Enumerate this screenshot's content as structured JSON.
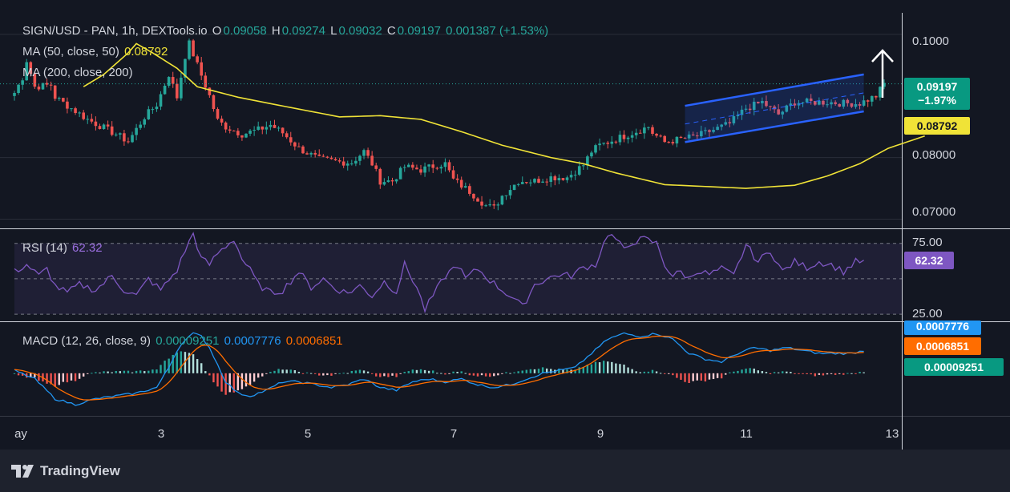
{
  "colors": {
    "background": "#131722",
    "up": "#26a69a",
    "down": "#ef5350",
    "ma50": "#f0e337",
    "rsi": "#7e57c2",
    "macd": "#2196f3",
    "signal": "#ff6d00",
    "channel": "#2962ff"
  },
  "header": {
    "symbol": "SIGN/USD - PAN, 1h, DEXTools.io",
    "o_label": "O",
    "o_value": "0.09058",
    "h_label": "H",
    "h_value": "0.09274",
    "l_label": "L",
    "l_value": "0.09032",
    "c_label": "C",
    "c_value": "0.09197",
    "change": "0.001387 (+1.53%)",
    "ma50_label": "MA (50, close, 50)",
    "ma50_value": "0.08792",
    "ma200_label": "MA (200, close, 200)"
  },
  "rsi_header": {
    "label": "RSI (14)",
    "value": "62.32"
  },
  "macd_header": {
    "label": "MACD (12, 26, close, 9)",
    "hist": "0.00009251",
    "macd": "0.0007776",
    "signal": "0.0006851"
  },
  "badges": {
    "price": "0.09197",
    "change_pct": "−1.97%",
    "ma50": "0.08792",
    "rsi": "62.32",
    "macd": "0.0007776",
    "signal": "0.0006851",
    "hist": "0.00009251"
  },
  "price_axis": [
    "0.1000",
    "0.08000",
    "0.07000"
  ],
  "rsi_axis": [
    "75.00",
    "25.00"
  ],
  "time_axis": [
    "ay",
    "3",
    "5",
    "7",
    "9",
    "11",
    "13"
  ],
  "footer": {
    "brand": "TradingView",
    "logo_icon": "tradingview-logo-icon"
  },
  "chart_data": {
    "type": "candlestick",
    "price_ylim": [
      0.0685,
      0.1035
    ],
    "rsi_ylim": [
      20,
      85
    ],
    "x_ticks": [
      "ay",
      "3",
      "5",
      "7",
      "9",
      "11",
      "13"
    ],
    "price_ticks": [
      "0.1000",
      "0.08000",
      "0.07000"
    ],
    "price_keypoints": [
      [
        0,
        0.0905
      ],
      [
        2,
        0.093
      ],
      [
        3,
        0.0958
      ],
      [
        5,
        0.0915
      ],
      [
        9,
        0.0918
      ],
      [
        10,
        0.0898
      ],
      [
        14,
        0.088
      ],
      [
        18,
        0.0862
      ],
      [
        25,
        0.0838
      ],
      [
        28,
        0.0826
      ],
      [
        32,
        0.0866
      ],
      [
        35,
        0.0886
      ],
      [
        38,
        0.0935
      ],
      [
        40,
        0.0898
      ],
      [
        42,
        0.0965
      ],
      [
        43,
        0.0985
      ],
      [
        45,
        0.095
      ],
      [
        48,
        0.09
      ],
      [
        50,
        0.086
      ],
      [
        52,
        0.085
      ],
      [
        56,
        0.0838
      ],
      [
        60,
        0.0845
      ],
      [
        63,
        0.0853
      ],
      [
        66,
        0.084
      ],
      [
        70,
        0.0815
      ],
      [
        75,
        0.0797
      ],
      [
        80,
        0.0793
      ],
      [
        83,
        0.0792
      ],
      [
        86,
        0.081
      ],
      [
        88,
        0.079
      ],
      [
        90,
        0.0762
      ],
      [
        93,
        0.0762
      ],
      [
        96,
        0.0785
      ],
      [
        100,
        0.078
      ],
      [
        104,
        0.0788
      ],
      [
        106,
        0.079
      ],
      [
        108,
        0.0764
      ],
      [
        112,
        0.0745
      ],
      [
        116,
        0.0722
      ],
      [
        118,
        0.0718
      ],
      [
        120,
        0.0738
      ],
      [
        124,
        0.0762
      ],
      [
        128,
        0.0762
      ],
      [
        132,
        0.0768
      ],
      [
        136,
        0.0768
      ],
      [
        140,
        0.0788
      ],
      [
        142,
        0.081
      ],
      [
        144,
        0.082
      ],
      [
        148,
        0.083
      ],
      [
        152,
        0.084
      ],
      [
        156,
        0.085
      ],
      [
        157,
        0.084
      ],
      [
        160,
        0.0825
      ],
      [
        164,
        0.083
      ],
      [
        168,
        0.0835
      ],
      [
        172,
        0.0845
      ],
      [
        176,
        0.0855
      ],
      [
        180,
        0.088
      ],
      [
        184,
        0.089
      ],
      [
        188,
        0.087
      ],
      [
        192,
        0.089
      ],
      [
        196,
        0.089
      ],
      [
        200,
        0.089
      ],
      [
        204,
        0.0888
      ],
      [
        208,
        0.0888
      ],
      [
        212,
        0.09
      ],
      [
        214,
        0.092
      ]
    ],
    "ma50_keypoints": [
      [
        17,
        0.0915
      ],
      [
        22,
        0.0935
      ],
      [
        28,
        0.097
      ],
      [
        30,
        0.0985
      ],
      [
        34,
        0.097
      ],
      [
        40,
        0.0945
      ],
      [
        45,
        0.0915
      ],
      [
        55,
        0.0898
      ],
      [
        65,
        0.0885
      ],
      [
        80,
        0.0866
      ],
      [
        90,
        0.0868
      ],
      [
        100,
        0.0862
      ],
      [
        110,
        0.0842
      ],
      [
        120,
        0.082
      ],
      [
        132,
        0.08
      ],
      [
        140,
        0.079
      ],
      [
        148,
        0.0775
      ],
      [
        160,
        0.0756
      ],
      [
        180,
        0.075
      ],
      [
        192,
        0.0755
      ],
      [
        200,
        0.077
      ],
      [
        208,
        0.079
      ],
      [
        215,
        0.0815
      ],
      [
        224,
        0.0835
      ]
    ],
    "channel": {
      "upper": [
        [
          165,
          0.0884
        ],
        [
          209,
          0.0935
        ]
      ],
      "lower": [
        [
          165,
          0.0825
        ],
        [
          209,
          0.0875
        ]
      ]
    },
    "rsi_keypoints": [
      [
        0,
        55
      ],
      [
        3,
        60
      ],
      [
        6,
        52
      ],
      [
        8,
        57
      ],
      [
        10,
        45
      ],
      [
        13,
        40
      ],
      [
        16,
        46
      ],
      [
        20,
        42
      ],
      [
        24,
        52
      ],
      [
        27,
        42
      ],
      [
        30,
        38
      ],
      [
        33,
        50
      ],
      [
        36,
        42
      ],
      [
        40,
        56
      ],
      [
        42,
        70
      ],
      [
        44,
        82
      ],
      [
        46,
        64
      ],
      [
        48,
        60
      ],
      [
        50,
        68
      ],
      [
        54,
        78
      ],
      [
        56,
        64
      ],
      [
        58,
        56
      ],
      [
        60,
        46
      ],
      [
        63,
        40
      ],
      [
        66,
        42
      ],
      [
        70,
        55
      ],
      [
        73,
        44
      ],
      [
        76,
        50
      ],
      [
        79,
        43
      ],
      [
        82,
        40
      ],
      [
        85,
        45
      ],
      [
        88,
        38
      ],
      [
        91,
        48
      ],
      [
        94,
        41
      ],
      [
        96,
        60
      ],
      [
        99,
        44
      ],
      [
        101,
        28
      ],
      [
        103,
        38
      ],
      [
        106,
        52
      ],
      [
        109,
        60
      ],
      [
        111,
        50
      ],
      [
        114,
        57
      ],
      [
        117,
        49
      ],
      [
        120,
        42
      ],
      [
        123,
        36
      ],
      [
        125,
        30
      ],
      [
        128,
        46
      ],
      [
        131,
        50
      ],
      [
        134,
        53
      ],
      [
        137,
        52
      ],
      [
        140,
        58
      ],
      [
        143,
        60
      ],
      [
        146,
        82
      ],
      [
        148,
        78
      ],
      [
        150,
        70
      ],
      [
        152,
        76
      ],
      [
        155,
        78
      ],
      [
        158,
        75
      ],
      [
        160,
        60
      ],
      [
        162,
        52
      ],
      [
        164,
        55
      ],
      [
        166,
        50
      ],
      [
        168,
        56
      ],
      [
        171,
        53
      ],
      [
        174,
        57
      ],
      [
        177,
        52
      ],
      [
        180,
        74
      ],
      [
        183,
        62
      ],
      [
        186,
        70
      ],
      [
        189,
        55
      ],
      [
        192,
        62
      ],
      [
        195,
        58
      ],
      [
        198,
        62
      ],
      [
        201,
        60
      ],
      [
        204,
        55
      ],
      [
        207,
        62
      ],
      [
        209,
        62
      ]
    ],
    "macd_keypoints": [
      [
        0,
        0.0001
      ],
      [
        5,
        -0.0002
      ],
      [
        10,
        -0.0009
      ],
      [
        15,
        -0.0011
      ],
      [
        20,
        -0.0009
      ],
      [
        25,
        -0.0008
      ],
      [
        30,
        -0.0007
      ],
      [
        35,
        -0.0005
      ],
      [
        38,
        0.0002
      ],
      [
        40,
        0.0008
      ],
      [
        42,
        0.0012
      ],
      [
        44,
        0.0014
      ],
      [
        46,
        0.0013
      ],
      [
        48,
        0.0009
      ],
      [
        50,
        0.0003
      ],
      [
        52,
        -0.0003
      ],
      [
        55,
        -0.0007
      ],
      [
        58,
        -0.0008
      ],
      [
        62,
        -0.0006
      ],
      [
        66,
        -0.0003
      ],
      [
        70,
        -0.0003
      ],
      [
        74,
        -0.0004
      ],
      [
        78,
        -0.0005
      ],
      [
        82,
        -0.0004
      ],
      [
        86,
        -0.0002
      ],
      [
        90,
        -0.0005
      ],
      [
        94,
        -0.0006
      ],
      [
        98,
        -0.0003
      ],
      [
        102,
        -0.0002
      ],
      [
        106,
        -0.0003
      ],
      [
        110,
        -0.0002
      ],
      [
        114,
        -0.0004
      ],
      [
        118,
        -0.0005
      ],
      [
        122,
        -0.0004
      ],
      [
        126,
        -0.0002
      ],
      [
        130,
        0.0
      ],
      [
        134,
        0.0001
      ],
      [
        138,
        0.0002
      ],
      [
        142,
        0.0007
      ],
      [
        146,
        0.0012
      ],
      [
        150,
        0.0014
      ],
      [
        154,
        0.0013
      ],
      [
        158,
        0.0014
      ],
      [
        162,
        0.0012
      ],
      [
        166,
        0.0007
      ],
      [
        170,
        0.0005
      ],
      [
        174,
        0.0004
      ],
      [
        178,
        0.0007
      ],
      [
        182,
        0.0009
      ],
      [
        186,
        0.0008
      ],
      [
        190,
        0.0009
      ],
      [
        194,
        0.0008
      ],
      [
        198,
        0.0007
      ],
      [
        202,
        0.0007
      ],
      [
        206,
        0.0007
      ],
      [
        209,
        0.0008
      ]
    ],
    "macd_ylim": [
      -0.0015,
      0.0018
    ],
    "last_values": {
      "price": 0.09197,
      "ma50": 0.08792,
      "rsi": 62.32,
      "macd": 0.0007776,
      "signal": 0.0006851,
      "hist": 9.251e-05
    }
  }
}
